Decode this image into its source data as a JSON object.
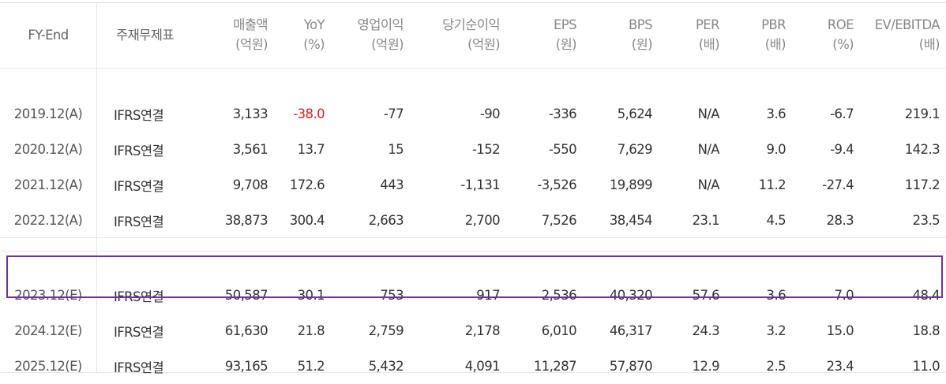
{
  "headers": [
    {
      "line1": "FY-End",
      "line2": ""
    },
    {
      "line1": "주재무제표",
      "line2": ""
    },
    {
      "line1": "매출액",
      "line2": "(억원)"
    },
    {
      "line1": "YoY",
      "line2": "(%)"
    },
    {
      "line1": "영업이익",
      "line2": "(억원)"
    },
    {
      "line1": "당기순이익",
      "line2": "(억원)"
    },
    {
      "line1": "EPS",
      "line2": "(원)"
    },
    {
      "line1": "BPS",
      "line2": "(원)"
    },
    {
      "line1": "PER",
      "line2": "(배)"
    },
    {
      "line1": "PBR",
      "line2": "(배)"
    },
    {
      "line1": "ROE",
      "line2": "(%)"
    },
    {
      "line1": "EV/EBITDA",
      "line2": "(배)"
    }
  ],
  "rows": [
    {
      "fy": "2019.12(A)",
      "std": "IFRS연결",
      "revenue": "3,133",
      "yoy": "-38.0",
      "op_income": "-77",
      "net_income": "-90",
      "eps": "-336",
      "bps": "5,624",
      "per": "N/A",
      "pbr": "3.6",
      "roe": "-6.7",
      "ev_ebitda": "219.1"
    },
    {
      "fy": "2020.12(A)",
      "std": "IFRS연결",
      "revenue": "3,561",
      "yoy": "13.7",
      "op_income": "15",
      "net_income": "-152",
      "eps": "-550",
      "bps": "7,629",
      "per": "N/A",
      "pbr": "9.0",
      "roe": "-9.4",
      "ev_ebitda": "142.3"
    },
    {
      "fy": "2021.12(A)",
      "std": "IFRS연결",
      "revenue": "9,708",
      "yoy": "172.6",
      "op_income": "443",
      "net_income": "-1,131",
      "eps": "-3,526",
      "bps": "19,899",
      "per": "N/A",
      "pbr": "11.2",
      "roe": "-27.4",
      "ev_ebitda": "117.2"
    },
    {
      "fy": "2022.12(A)",
      "std": "IFRS연결",
      "revenue": "38,873",
      "yoy": "300.4",
      "op_income": "2,663",
      "net_income": "2,700",
      "eps": "7,526",
      "bps": "38,454",
      "per": "23.1",
      "pbr": "4.5",
      "roe": "28.3",
      "ev_ebitda": "23.5"
    },
    {
      "fy": "2023.12(E)",
      "std": "IFRS연결",
      "revenue": "50,587",
      "yoy": "30.1",
      "op_income": "753",
      "net_income": "917",
      "eps": "2,536",
      "bps": "40,320",
      "per": "57.6",
      "pbr": "3.6",
      "roe": "7.0",
      "ev_ebitda": "48.4"
    },
    {
      "fy": "2024.12(E)",
      "std": "IFRS연결",
      "revenue": "61,630",
      "yoy": "21.8",
      "op_income": "2,759",
      "net_income": "2,178",
      "eps": "6,010",
      "bps": "46,317",
      "per": "24.3",
      "pbr": "3.2",
      "roe": "15.0",
      "ev_ebitda": "18.8"
    },
    {
      "fy": "2025.12(E)",
      "std": "IFRS연결",
      "revenue": "93,165",
      "yoy": "51.2",
      "op_income": "5,432",
      "net_income": "4,091",
      "eps": "11,287",
      "bps": "57,870",
      "per": "12.9",
      "pbr": "2.5",
      "roe": "23.4",
      "ev_ebitda": "11.0"
    }
  ],
  "colors": {
    "negative_highlight": "#e02020",
    "highlight_box": "#7030a0"
  }
}
